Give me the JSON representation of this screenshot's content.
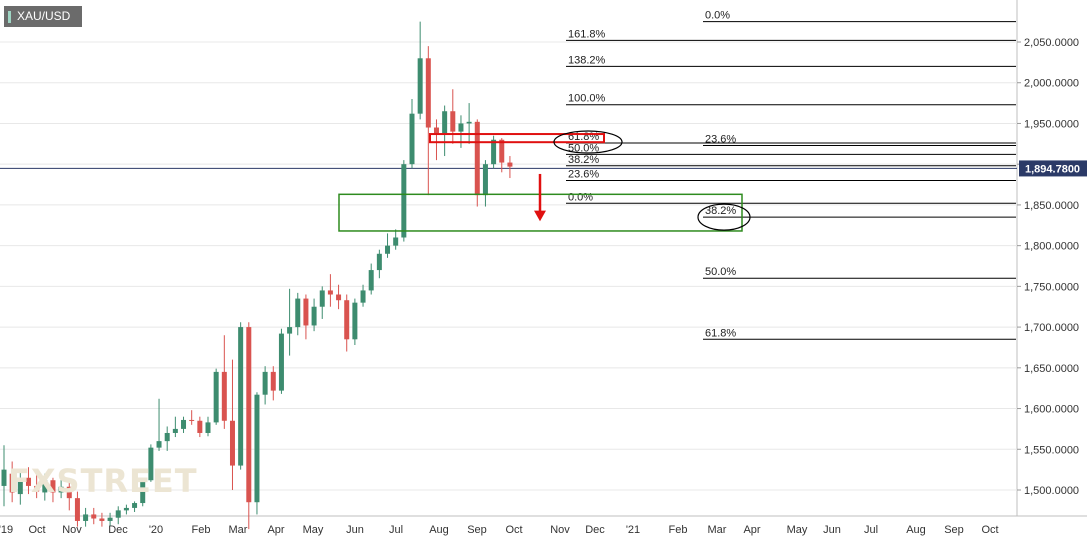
{
  "symbol": "XAU/USD",
  "watermark": "FXSTREET",
  "price_tag": "1,894.7800",
  "colors": {
    "up": "#3d8c6f",
    "down": "#d9534f",
    "zone_green": "#2e8b1e",
    "zone_red": "#e01010",
    "arrow": "#e01010",
    "axis_text": "#333333",
    "grid": "#e8e8e8"
  },
  "chart_data": {
    "type": "candlestick",
    "title": "",
    "ylim": [
      1470,
      2075
    ],
    "y_ticks": [
      "2,050.0000",
      "2,000.0000",
      "1,950.0000",
      "1,900.0000",
      "1,850.0000",
      "1,800.0000",
      "1,750.0000",
      "1,700.0000",
      "1,650.0000",
      "1,600.0000",
      "1,550.0000",
      "1,500.0000"
    ],
    "y_tick_values": [
      2050,
      2000,
      1950,
      1900,
      1850,
      1800,
      1750,
      1700,
      1650,
      1600,
      1550,
      1500
    ],
    "x_ticks": [
      "'19",
      "Oct",
      "Nov",
      "Dec",
      "'20",
      "Feb",
      "Mar",
      "Apr",
      "May",
      "Jun",
      "Jul",
      "Aug",
      "Sep",
      "Oct",
      "Nov",
      "Dec",
      "'21",
      "Feb",
      "Mar",
      "Apr",
      "May",
      "Jun",
      "Jul",
      "Aug",
      "Sep",
      "Oct"
    ],
    "current_price": 1894.78,
    "candles": [
      {
        "o": 1505,
        "h": 1555,
        "l": 1480,
        "c": 1525
      },
      {
        "o": 1520,
        "c": 1497,
        "h": 1535,
        "l": 1485
      },
      {
        "o": 1495,
        "c": 1515,
        "h": 1525,
        "l": 1482
      },
      {
        "o": 1515,
        "c": 1505,
        "h": 1528,
        "l": 1495
      },
      {
        "o": 1505,
        "c": 1498,
        "h": 1520,
        "l": 1490
      },
      {
        "o": 1497,
        "c": 1512,
        "h": 1520,
        "l": 1487
      },
      {
        "o": 1512,
        "c": 1497,
        "h": 1515,
        "l": 1485
      },
      {
        "o": 1497,
        "c": 1504,
        "h": 1515,
        "l": 1490
      },
      {
        "o": 1504,
        "c": 1490,
        "h": 1510,
        "l": 1475
      },
      {
        "o": 1490,
        "c": 1462,
        "h": 1498,
        "l": 1455
      },
      {
        "o": 1462,
        "c": 1470,
        "h": 1478,
        "l": 1455
      },
      {
        "o": 1470,
        "c": 1465,
        "h": 1478,
        "l": 1458
      },
      {
        "o": 1465,
        "c": 1462,
        "h": 1472,
        "l": 1455
      },
      {
        "o": 1462,
        "c": 1466,
        "h": 1472,
        "l": 1456
      },
      {
        "o": 1466,
        "c": 1475,
        "h": 1480,
        "l": 1458
      },
      {
        "o": 1475,
        "c": 1478,
        "h": 1482,
        "l": 1470
      },
      {
        "o": 1478,
        "c": 1484,
        "h": 1486,
        "l": 1473
      },
      {
        "o": 1484,
        "c": 1512,
        "h": 1515,
        "l": 1480
      },
      {
        "o": 1512,
        "c": 1552,
        "h": 1556,
        "l": 1510
      },
      {
        "o": 1552,
        "c": 1560,
        "h": 1612,
        "l": 1548
      },
      {
        "o": 1560,
        "c": 1570,
        "h": 1578,
        "l": 1548
      },
      {
        "o": 1570,
        "c": 1575,
        "h": 1590,
        "l": 1565
      },
      {
        "o": 1575,
        "c": 1586,
        "h": 1590,
        "l": 1570
      },
      {
        "o": 1586,
        "c": 1585,
        "h": 1598,
        "l": 1580
      },
      {
        "o": 1585,
        "c": 1570,
        "h": 1590,
        "l": 1565
      },
      {
        "o": 1570,
        "c": 1583,
        "h": 1590,
        "l": 1566
      },
      {
        "o": 1583,
        "c": 1645,
        "h": 1649,
        "l": 1580
      },
      {
        "o": 1645,
        "c": 1585,
        "h": 1690,
        "l": 1575
      },
      {
        "o": 1585,
        "c": 1530,
        "h": 1660,
        "l": 1500
      },
      {
        "o": 1530,
        "c": 1700,
        "h": 1706,
        "l": 1525
      },
      {
        "o": 1700,
        "c": 1485,
        "h": 1706,
        "l": 1452
      },
      {
        "o": 1485,
        "c": 1617,
        "h": 1620,
        "l": 1470
      },
      {
        "o": 1617,
        "c": 1645,
        "h": 1652,
        "l": 1605
      },
      {
        "o": 1645,
        "c": 1622,
        "h": 1652,
        "l": 1610
      },
      {
        "o": 1622,
        "c": 1692,
        "h": 1698,
        "l": 1618
      },
      {
        "o": 1692,
        "c": 1700,
        "h": 1747,
        "l": 1665
      },
      {
        "o": 1700,
        "c": 1735,
        "h": 1742,
        "l": 1690
      },
      {
        "o": 1735,
        "c": 1702,
        "h": 1740,
        "l": 1685
      },
      {
        "o": 1702,
        "c": 1725,
        "h": 1735,
        "l": 1695
      },
      {
        "o": 1725,
        "c": 1745,
        "h": 1750,
        "l": 1710
      },
      {
        "o": 1745,
        "c": 1740,
        "h": 1765,
        "l": 1725
      },
      {
        "o": 1740,
        "c": 1733,
        "h": 1752,
        "l": 1722
      },
      {
        "o": 1733,
        "c": 1685,
        "h": 1740,
        "l": 1670
      },
      {
        "o": 1685,
        "c": 1730,
        "h": 1735,
        "l": 1678
      },
      {
        "o": 1730,
        "c": 1745,
        "h": 1752,
        "l": 1725
      },
      {
        "o": 1745,
        "c": 1770,
        "h": 1778,
        "l": 1740
      },
      {
        "o": 1770,
        "c": 1790,
        "h": 1795,
        "l": 1760
      },
      {
        "o": 1790,
        "c": 1800,
        "h": 1815,
        "l": 1785
      },
      {
        "o": 1800,
        "c": 1810,
        "h": 1820,
        "l": 1795
      },
      {
        "o": 1810,
        "c": 1900,
        "h": 1905,
        "l": 1805
      },
      {
        "o": 1900,
        "c": 1962,
        "h": 1980,
        "l": 1895
      },
      {
        "o": 1962,
        "c": 2030,
        "h": 2075,
        "l": 1955
      },
      {
        "o": 2030,
        "c": 1945,
        "h": 2045,
        "l": 1862
      },
      {
        "o": 1945,
        "c": 1938,
        "h": 1955,
        "l": 1905
      },
      {
        "o": 1938,
        "c": 1965,
        "h": 1972,
        "l": 1910
      },
      {
        "o": 1965,
        "c": 1940,
        "h": 1992,
        "l": 1925
      },
      {
        "o": 1940,
        "c": 1950,
        "h": 1960,
        "l": 1920
      },
      {
        "o": 1950,
        "c": 1952,
        "h": 1975,
        "l": 1925
      },
      {
        "o": 1952,
        "c": 1862,
        "h": 1955,
        "l": 1848
      },
      {
        "o": 1862,
        "c": 1900,
        "h": 1905,
        "l": 1848
      },
      {
        "o": 1900,
        "c": 1930,
        "h": 1935,
        "l": 1895
      },
      {
        "o": 1930,
        "c": 1902,
        "h": 1932,
        "l": 1890
      },
      {
        "o": 1902,
        "c": 1897,
        "h": 1910,
        "l": 1883
      }
    ],
    "fib_left": [
      {
        "label": "0.0%",
        "value": 2075
      },
      {
        "label": "161.8%",
        "value": 2052
      },
      {
        "label": "138.2%",
        "value": 2020
      },
      {
        "label": "100.0%",
        "value": 1973
      },
      {
        "label": "61.8%",
        "value": 1926
      },
      {
        "label": "50.0%",
        "value": 1912
      },
      {
        "label": "38.2%",
        "value": 1898
      },
      {
        "label": "23.6%",
        "value": 1880
      },
      {
        "label": "0.0%",
        "value": 1852
      }
    ],
    "fib_right": [
      {
        "label": "23.6%",
        "value": 1923
      },
      {
        "label": "38.2%",
        "value": 1835
      },
      {
        "label": "50.0%",
        "value": 1760
      },
      {
        "label": "61.8%",
        "value": 1685
      }
    ],
    "zones": [
      {
        "name": "resistance",
        "from": 1927,
        "to": 1937
      },
      {
        "name": "support",
        "from": 1818,
        "to": 1863
      }
    ]
  }
}
